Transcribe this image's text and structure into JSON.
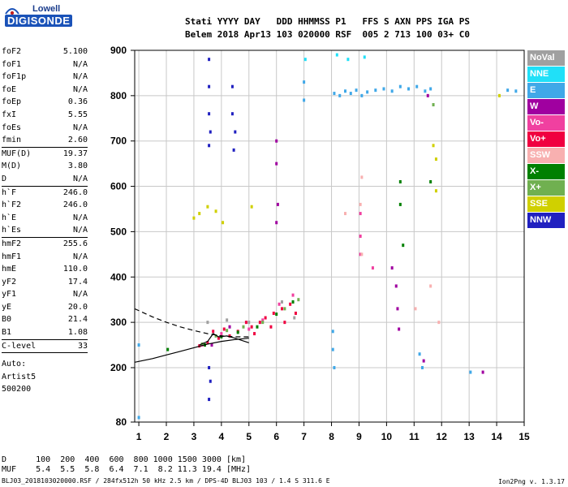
{
  "brand": {
    "top": "Lowell",
    "main": "DIGISONDE"
  },
  "header": {
    "line1": "Stati YYYY DAY   DDD HHMMSS P1   FFS S AXN PPS IGA PS",
    "line2": "Belem 2018 Apr13 103 020000 RSF  005 2 713 100 03+ C0"
  },
  "params": [
    {
      "k": "foF2",
      "v": "5.100"
    },
    {
      "k": "foF1",
      "v": "N/A"
    },
    {
      "k": "foF1p",
      "v": "N/A"
    },
    {
      "k": "foE",
      "v": "N/A"
    },
    {
      "k": "foEp",
      "v": "0.36"
    },
    {
      "k": "fxI",
      "v": "5.55"
    },
    {
      "k": "foEs",
      "v": "N/A"
    },
    {
      "k": "fmin",
      "v": "2.60"
    },
    {
      "k": "MUF(D)",
      "v": "19.37"
    },
    {
      "k": "M(D)",
      "v": "3.80"
    },
    {
      "k": "D",
      "v": "N/A"
    },
    {
      "k": "h`F",
      "v": "246.0"
    },
    {
      "k": "h`F2",
      "v": "246.0"
    },
    {
      "k": "h`E",
      "v": "N/A"
    },
    {
      "k": "h`Es",
      "v": "N/A"
    },
    {
      "k": "hmF2",
      "v": "255.6"
    },
    {
      "k": "hmF1",
      "v": "N/A"
    },
    {
      "k": "hmE",
      "v": "110.0"
    },
    {
      "k": "yF2",
      "v": "17.4"
    },
    {
      "k": "yF1",
      "v": "N/A"
    },
    {
      "k": "yE",
      "v": "20.0"
    },
    {
      "k": "B0",
      "v": "21.4"
    },
    {
      "k": "B1",
      "v": "1.08"
    },
    {
      "k": "C-level",
      "v": "33"
    }
  ],
  "auto": {
    "line1": "Auto:",
    "line2": "Artist5",
    "line3": "500200"
  },
  "footer": {
    "d_row": "D      100  200  400  600  800 1000 1500 3000 [km]",
    "muf_row": "MUF    5.4  5.5  5.8  6.4  7.1  8.2 11.3 19.4 [MHz]",
    "file_row": "BLJ03_2018103020000.RSF / 284fx512h 50 kHz 2.5 km / DPS-4D BLJ03 103 / 1.4 S 311.6 E",
    "version": "Ion2Png v. 1.3.17"
  },
  "legend": [
    {
      "label": "NoVal",
      "color": "#a0a0a0"
    },
    {
      "label": "NNE",
      "color": "#20e0f8"
    },
    {
      "label": "E",
      "color": "#40a8e8"
    },
    {
      "label": "W",
      "color": "#a000a0"
    },
    {
      "label": "Vo-",
      "color": "#f040a0"
    },
    {
      "label": "Vo+",
      "color": "#f00040"
    },
    {
      "label": "SSW",
      "color": "#f8b0b0"
    },
    {
      "label": "X-",
      "color": "#008000"
    },
    {
      "label": "X+",
      "color": "#70b050"
    },
    {
      "label": "SSE",
      "color": "#d0d000"
    },
    {
      "label": "NNW",
      "color": "#2020c0"
    }
  ],
  "chart_data": {
    "type": "scatter",
    "xlim": [
      0.85,
      15
    ],
    "ylim": [
      80,
      900
    ],
    "x_ticks": [
      1,
      2,
      3,
      4,
      5,
      6,
      7,
      8,
      9,
      10,
      11,
      12,
      13,
      14,
      15
    ],
    "y_ticks": [
      80,
      200,
      300,
      400,
      500,
      600,
      700,
      800,
      900
    ],
    "grid": true,
    "series": [
      {
        "name": "NNW",
        "color": "#2020c0",
        "points": [
          [
            3.55,
            880
          ],
          [
            3.55,
            820
          ],
          [
            3.55,
            760
          ],
          [
            3.6,
            720
          ],
          [
            3.55,
            690
          ],
          [
            3.55,
            200
          ],
          [
            3.6,
            170
          ],
          [
            3.55,
            130
          ],
          [
            4.4,
            820
          ],
          [
            4.4,
            760
          ],
          [
            4.5,
            720
          ],
          [
            4.45,
            680
          ]
        ]
      },
      {
        "name": "E",
        "color": "#40a8e8",
        "points": [
          [
            8.1,
            805
          ],
          [
            8.3,
            800
          ],
          [
            8.5,
            810
          ],
          [
            8.7,
            805
          ],
          [
            8.9,
            812
          ],
          [
            9.1,
            800
          ],
          [
            9.3,
            808
          ],
          [
            9.6,
            812
          ],
          [
            9.9,
            815
          ],
          [
            10.2,
            810
          ],
          [
            10.5,
            820
          ],
          [
            10.8,
            815
          ],
          [
            11.1,
            820
          ],
          [
            11.4,
            810
          ],
          [
            11.6,
            815
          ],
          [
            14.4,
            812
          ],
          [
            14.7,
            810
          ],
          [
            7.0,
            830
          ],
          [
            7.0,
            790
          ],
          [
            8.05,
            280
          ],
          [
            8.05,
            240
          ],
          [
            8.1,
            200
          ],
          [
            11.2,
            230
          ],
          [
            11.3,
            200
          ],
          [
            13.05,
            190
          ],
          [
            1.0,
            90
          ],
          [
            1.0,
            250
          ]
        ]
      },
      {
        "name": "Vo+",
        "color": "#f00040",
        "points": [
          [
            3.5,
            255
          ],
          [
            3.7,
            280
          ],
          [
            3.9,
            265
          ],
          [
            4.1,
            285
          ],
          [
            4.3,
            270
          ],
          [
            4.6,
            280
          ],
          [
            4.9,
            300
          ],
          [
            5.1,
            290
          ],
          [
            5.4,
            300
          ],
          [
            5.6,
            310
          ],
          [
            5.9,
            320
          ],
          [
            6.2,
            330
          ],
          [
            6.5,
            340
          ],
          [
            6.7,
            320
          ],
          [
            6.3,
            300
          ],
          [
            5.8,
            290
          ],
          [
            5.2,
            275
          ],
          [
            3.2,
            248
          ]
        ]
      },
      {
        "name": "W",
        "color": "#a000a0",
        "points": [
          [
            6.0,
            700
          ],
          [
            6.0,
            650
          ],
          [
            6.05,
            560
          ],
          [
            6.0,
            520
          ],
          [
            10.2,
            420
          ],
          [
            10.35,
            380
          ],
          [
            10.4,
            330
          ],
          [
            10.45,
            285
          ],
          [
            11.35,
            215
          ],
          [
            11.5,
            800
          ],
          [
            13.5,
            190
          ],
          [
            3.65,
            250
          ],
          [
            4.3,
            290
          ]
        ]
      },
      {
        "name": "Vo-",
        "color": "#f040a0",
        "points": [
          [
            5.0,
            285
          ],
          [
            5.5,
            305
          ],
          [
            6.1,
            340
          ],
          [
            6.6,
            360
          ],
          [
            9.05,
            540
          ],
          [
            9.05,
            490
          ],
          [
            9.05,
            450
          ],
          [
            9.5,
            420
          ],
          [
            3.3,
            250
          ],
          [
            4.0,
            275
          ]
        ]
      },
      {
        "name": "X-",
        "color": "#008000",
        "points": [
          [
            2.05,
            240
          ],
          [
            3.4,
            250
          ],
          [
            4.0,
            268
          ],
          [
            4.6,
            278
          ],
          [
            5.3,
            290
          ],
          [
            6.0,
            318
          ],
          [
            6.6,
            345
          ],
          [
            10.5,
            610
          ],
          [
            10.5,
            560
          ],
          [
            10.6,
            470
          ],
          [
            11.6,
            610
          ]
        ]
      },
      {
        "name": "X+",
        "color": "#70b050",
        "points": [
          [
            3.3,
            252
          ],
          [
            3.8,
            270
          ],
          [
            4.2,
            282
          ],
          [
            4.8,
            290
          ],
          [
            5.5,
            300
          ],
          [
            6.3,
            330
          ],
          [
            6.8,
            350
          ],
          [
            11.7,
            780
          ]
        ]
      },
      {
        "name": "SSE",
        "color": "#d0d000",
        "points": [
          [
            3.0,
            530
          ],
          [
            3.2,
            540
          ],
          [
            3.5,
            555
          ],
          [
            3.8,
            545
          ],
          [
            4.05,
            520
          ],
          [
            5.1,
            555
          ],
          [
            11.7,
            690
          ],
          [
            11.8,
            660
          ],
          [
            11.8,
            590
          ],
          [
            14.1,
            800
          ]
        ]
      },
      {
        "name": "SSW",
        "color": "#f8b0b0",
        "points": [
          [
            9.1,
            620
          ],
          [
            9.05,
            560
          ],
          [
            9.1,
            450
          ],
          [
            8.5,
            540
          ],
          [
            11.05,
            330
          ],
          [
            11.9,
            300
          ],
          [
            11.6,
            380
          ]
        ]
      },
      {
        "name": "NNE",
        "color": "#20e0f8",
        "points": [
          [
            7.05,
            880
          ],
          [
            8.2,
            890
          ],
          [
            8.6,
            880
          ],
          [
            9.2,
            885
          ]
        ]
      },
      {
        "name": "NoVal",
        "color": "#a0a0a0",
        "points": [
          [
            3.5,
            300
          ],
          [
            4.2,
            305
          ],
          [
            5.0,
            300
          ],
          [
            6.2,
            345
          ],
          [
            6.65,
            310
          ]
        ]
      }
    ],
    "traces": [
      {
        "style": "solid",
        "points": [
          [
            0.85,
            212
          ],
          [
            1.5,
            220
          ],
          [
            2.0,
            228
          ],
          [
            2.5,
            236
          ],
          [
            3.0,
            244
          ],
          [
            3.5,
            252
          ],
          [
            4.0,
            258
          ],
          [
            4.5,
            262
          ],
          [
            5.0,
            265
          ]
        ]
      },
      {
        "style": "solid",
        "points": [
          [
            3.2,
            250
          ],
          [
            3.5,
            258
          ],
          [
            3.7,
            275
          ],
          [
            3.9,
            268
          ],
          [
            4.2,
            270
          ],
          [
            4.5,
            265
          ],
          [
            5.0,
            255
          ]
        ]
      },
      {
        "style": "dashed",
        "points": [
          [
            0.85,
            330
          ],
          [
            1.5,
            312
          ],
          [
            2.0,
            300
          ],
          [
            2.5,
            290
          ],
          [
            3.0,
            282
          ],
          [
            3.5,
            275
          ],
          [
            4.0,
            270
          ],
          [
            4.5,
            268
          ],
          [
            5.0,
            268
          ]
        ]
      }
    ]
  }
}
